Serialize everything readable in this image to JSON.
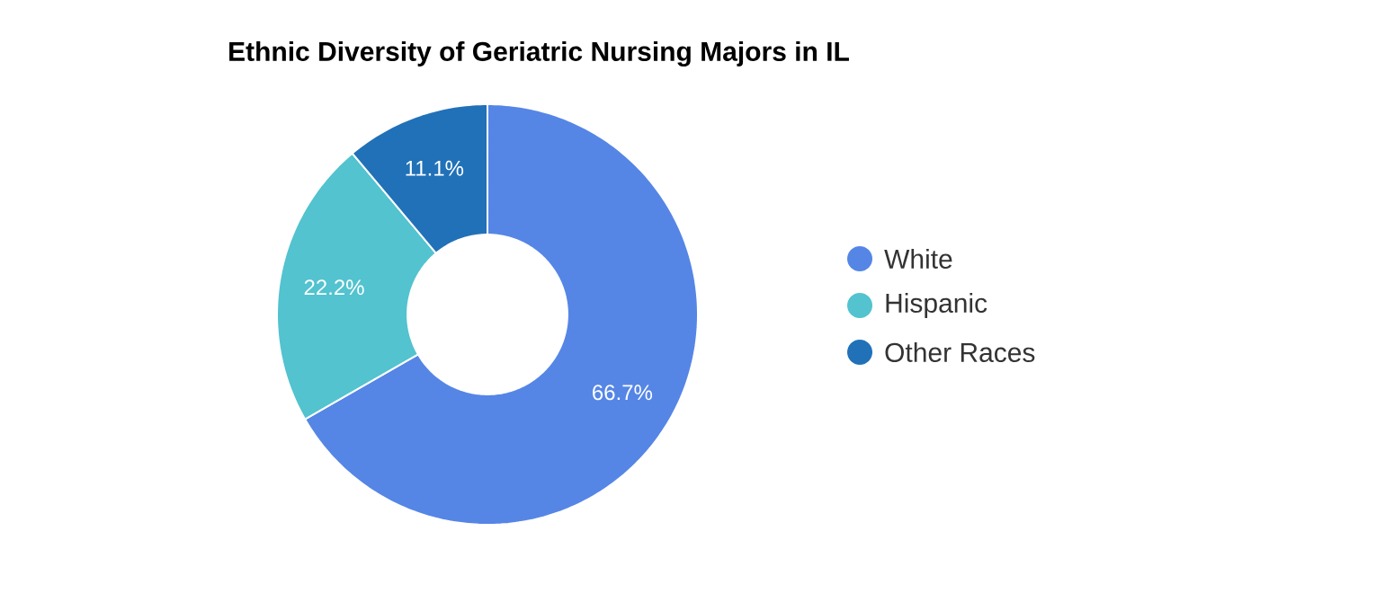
{
  "chart_data": {
    "type": "donut",
    "title": "Ethnic Diversity of Geriatric Nursing Majors in IL",
    "categories": [
      "White",
      "Hispanic",
      "Other Races"
    ],
    "values": [
      66.7,
      22.2,
      11.1
    ],
    "colors": [
      "#5586e6",
      "#52c3cf",
      "#2171b8"
    ],
    "value_labels": [
      "66.7%",
      "22.2%",
      "11.1%"
    ],
    "legend": "right"
  }
}
